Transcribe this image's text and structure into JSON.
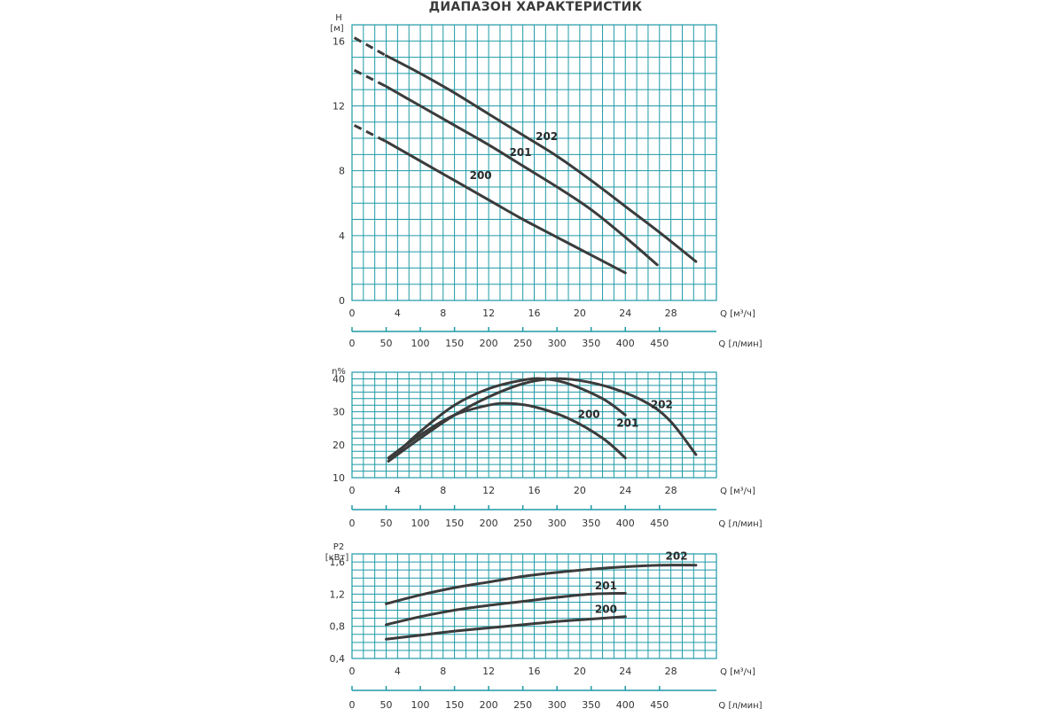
{
  "title": "ДИАПАЗОН ХАРАКТЕРИСТИК",
  "colors": {
    "grid": "#1f9aa6",
    "curve": "#3b3b3b",
    "text": "#333333"
  },
  "secondary_axis": {
    "label": "Q [л/мин]",
    "ticks": [
      "0",
      "50",
      "100",
      "150",
      "200",
      "250",
      "300",
      "350",
      "400",
      "450"
    ],
    "q_lpm_per_m3h": 16.6667
  },
  "chart_data": [
    {
      "type": "line",
      "id": "head",
      "ylabel": "H",
      "yunit": "[м]",
      "xlabel": "Q [м³/ч]",
      "xlim": [
        0,
        32
      ],
      "ylim": [
        0,
        17
      ],
      "xticks": [
        0,
        4,
        8,
        12,
        16,
        20,
        24,
        28
      ],
      "yticks": [
        0,
        4,
        8,
        12,
        16
      ],
      "grid": true,
      "series": [
        {
          "name": "200",
          "dashed": [
            [
              0.2,
              10.8
            ],
            [
              3,
              9.8
            ]
          ],
          "x": [
            3,
            6,
            9,
            12,
            15,
            18,
            21,
            24
          ],
          "y": [
            9.8,
            8.6,
            7.4,
            6.2,
            5.0,
            3.9,
            2.8,
            1.7
          ]
        },
        {
          "name": "201",
          "dashed": [
            [
              0.2,
              14.2
            ],
            [
              3,
              13.2
            ]
          ],
          "x": [
            3,
            6,
            9,
            12,
            15,
            18,
            21,
            24,
            26.8
          ],
          "y": [
            13.2,
            12.0,
            10.8,
            9.6,
            8.3,
            7.0,
            5.6,
            3.9,
            2.2
          ]
        },
        {
          "name": "202",
          "dashed": [
            [
              0.2,
              16.2
            ],
            [
              3,
              15.1
            ]
          ],
          "x": [
            3,
            6,
            9,
            12,
            15,
            18,
            21,
            24,
            27,
            30.2
          ],
          "y": [
            15.1,
            14.0,
            12.8,
            11.5,
            10.2,
            8.9,
            7.4,
            5.8,
            4.2,
            2.4
          ]
        }
      ],
      "annotations": [
        {
          "text": "200",
          "x": 11.3,
          "y": 7.5
        },
        {
          "text": "201",
          "x": 14.8,
          "y": 8.9
        },
        {
          "text": "202",
          "x": 17.1,
          "y": 9.9
        }
      ]
    },
    {
      "type": "line",
      "id": "efficiency",
      "ylabel": "η%",
      "xlabel": "Q [м³/ч]",
      "xlim": [
        0,
        32
      ],
      "ylim": [
        10,
        42
      ],
      "xticks": [
        0,
        4,
        8,
        12,
        16,
        20,
        24,
        28
      ],
      "yticks": [
        10,
        20,
        30,
        40
      ],
      "grid": true,
      "series": [
        {
          "name": "200",
          "x": [
            3.2,
            6,
            9,
            12,
            13.8,
            16,
            19,
            22,
            24
          ],
          "y": [
            16,
            23,
            29,
            32,
            32.5,
            31.5,
            28,
            22,
            16
          ]
        },
        {
          "name": "201",
          "x": [
            3.2,
            6,
            9,
            12,
            15,
            16.8,
            19,
            22,
            24
          ],
          "y": [
            15,
            24,
            32,
            37,
            39.6,
            40,
            38.5,
            34,
            29
          ]
        },
        {
          "name": "202",
          "x": [
            3.2,
            6,
            9,
            12,
            15,
            17.6,
            20,
            23,
            26,
            28,
            30.2
          ],
          "y": [
            15,
            22,
            29,
            34.5,
            38.5,
            40,
            39.5,
            37,
            32.5,
            27,
            17
          ]
        }
      ],
      "annotations": [
        {
          "text": "200",
          "x": 20.8,
          "y": 28.1
        },
        {
          "text": "201",
          "x": 24.2,
          "y": 25.4
        },
        {
          "text": "202",
          "x": 27.2,
          "y": 31.1
        }
      ]
    },
    {
      "type": "line",
      "id": "power",
      "ylabel": "P2",
      "yunit": "[кВт]",
      "xlabel": "Q [м³/ч]",
      "xlim": [
        0,
        32
      ],
      "ylim": [
        0.4,
        1.7
      ],
      "xticks": [
        0,
        4,
        8,
        12,
        16,
        20,
        24,
        28
      ],
      "yticks": [
        0.4,
        0.8,
        1.2,
        1.6
      ],
      "ytick_labels": [
        "0,4",
        "0,8",
        "1,2",
        "1,6"
      ],
      "grid": true,
      "series": [
        {
          "name": "200",
          "x": [
            3,
            6,
            9,
            12,
            15,
            18,
            21,
            24
          ],
          "y": [
            0.64,
            0.69,
            0.74,
            0.78,
            0.82,
            0.86,
            0.89,
            0.92
          ]
        },
        {
          "name": "201",
          "x": [
            3,
            6,
            9,
            12,
            15,
            18,
            21,
            24
          ],
          "y": [
            0.82,
            0.92,
            1.0,
            1.06,
            1.11,
            1.16,
            1.2,
            1.21
          ]
        },
        {
          "name": "202",
          "x": [
            3,
            6,
            9,
            12,
            15,
            18,
            21,
            24,
            27,
            30.2
          ],
          "y": [
            1.08,
            1.19,
            1.28,
            1.35,
            1.42,
            1.47,
            1.51,
            1.54,
            1.56,
            1.56
          ]
        }
      ],
      "annotations": [
        {
          "text": "200",
          "x": 22.3,
          "y": 0.97
        },
        {
          "text": "201",
          "x": 22.3,
          "y": 1.26
        },
        {
          "text": "202",
          "x": 28.5,
          "y": 1.63
        }
      ]
    }
  ]
}
